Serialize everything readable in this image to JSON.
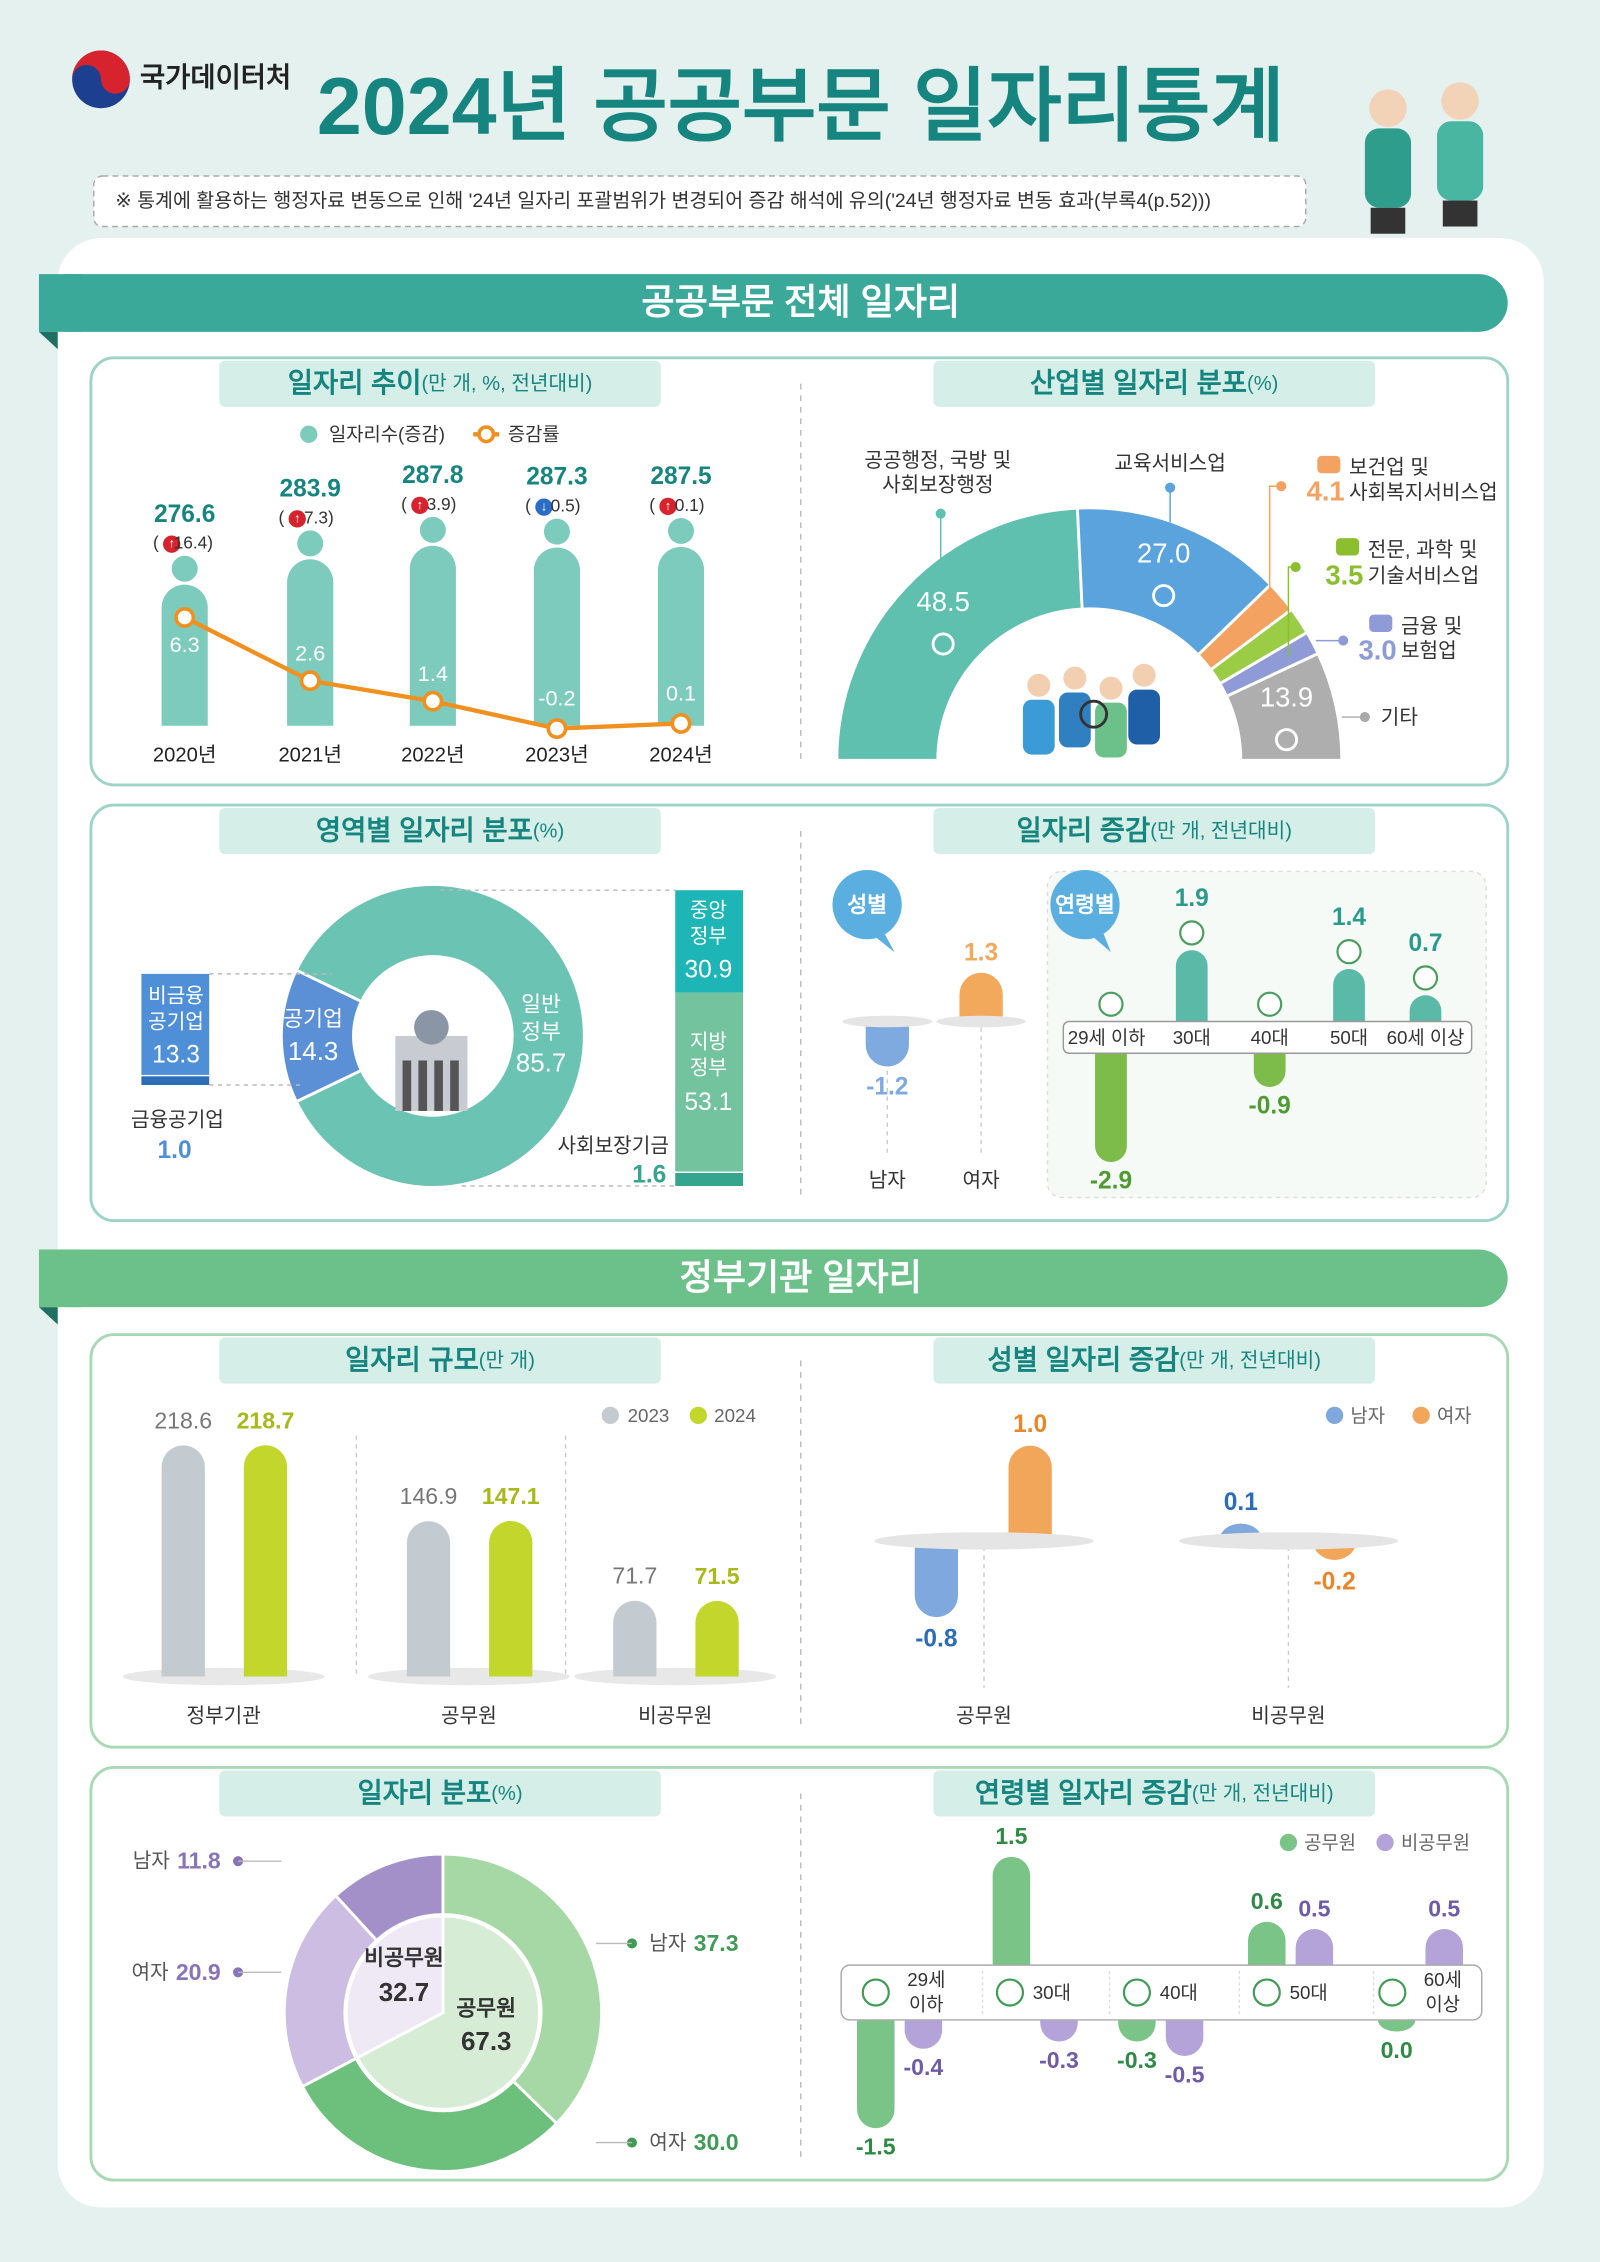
{
  "header": {
    "org": "국가데이터처",
    "title": "2024년 공공부문 일자리통계",
    "note": "※ 통계에 활용하는 행정자료 변동으로 인해 '24년 일자리 포괄범위가 변경되어 증감 해석에 유의('24년 행정자료 변동 효과(부록4(p.52)))"
  },
  "sections": [
    {
      "title": "공공부문 전체 일자리"
    },
    {
      "title": "정부기관 일자리"
    }
  ],
  "colors": {
    "teal": "#3aa99a",
    "green": "#6cc08a",
    "title_text": "#16857f"
  },
  "chart_data": [
    {
      "type": "bar+line",
      "title": "일자리 추이",
      "title_unit": "(만 개, %, 전년대비)",
      "legend": [
        "일자리수(증감)",
        "증감률"
      ],
      "categories": [
        "2020년",
        "2021년",
        "2022년",
        "2023년",
        "2024년"
      ],
      "jobs": [
        276.6,
        283.9,
        287.8,
        287.3,
        287.5
      ],
      "jobs_change": [
        16.4,
        7.3,
        3.9,
        -0.5,
        0.1
      ],
      "rate": [
        6.3,
        2.6,
        1.4,
        -0.2,
        0.1
      ],
      "colors": {
        "bar": "#7dcbbd",
        "line": "#f0901e"
      }
    },
    {
      "type": "pie",
      "shape": "semi-donut",
      "title": "산업별 일자리 분포",
      "title_unit": "(%)",
      "slices": [
        {
          "label": "공공행정, 국방 및",
          "label2": "사회보장행정",
          "value": 48.5,
          "color": "#5fc0b0",
          "icon": "people-gear-icon"
        },
        {
          "label": "교육서비스업",
          "label2": "",
          "value": 27.0,
          "color": "#5aa3dc",
          "icon": "book-icon"
        },
        {
          "label": "보건업 및",
          "label2": "사회복지서비스업",
          "value": 4.1,
          "color": "#f4a261",
          "icon": "heart-hand-icon"
        },
        {
          "label": "전문, 과학 및",
          "label2": "기술서비스업",
          "value": 3.5,
          "color": "#9bcc45",
          "icon": "tools-icon"
        },
        {
          "label": "금융 및",
          "label2": "보험업",
          "value": 3.0,
          "color": "#8f9bd6",
          "icon": "money-icon"
        },
        {
          "label": "기타",
          "label2": "",
          "value": 13.9,
          "color": "#aeaeae",
          "icon": "lightbulb-icon"
        }
      ]
    },
    {
      "type": "pie",
      "shape": "donut",
      "title": "영역별 일자리 분포",
      "title_unit": "(%)",
      "slices": [
        {
          "label": "공기업",
          "value": 14.3,
          "color": "#5b8fd6"
        },
        {
          "label": "일반정부",
          "label_l1": "일반",
          "label_l2": "정부",
          "value": 85.7,
          "color": "#6bc3b4"
        }
      ],
      "public_enterprise": [
        {
          "label_l1": "비금융",
          "label_l2": "공기업",
          "label": "금융공기업",
          "value": 13.3
        },
        {
          "label": "금융공기업",
          "value": 1.0
        }
      ],
      "general_government": [
        {
          "label_l1": "중앙",
          "label_l2": "정부",
          "value": 30.9,
          "color": "#1db5b5"
        },
        {
          "label_l1": "지방",
          "label_l2": "정부",
          "value": 53.1,
          "color": "#72c39e"
        },
        {
          "label": "사회보장기금",
          "value": 1.6,
          "color": "#35a58e"
        }
      ]
    },
    {
      "type": "bar",
      "title": "일자리 증감",
      "title_unit": "(만 개, 전년대비)",
      "gender": {
        "badge": "성별",
        "categories": [
          "남자",
          "여자"
        ],
        "values": [
          -1.2,
          1.3
        ],
        "colors": [
          "#7eaadf",
          "#f3a95c"
        ]
      },
      "age": {
        "badge": "연령별",
        "categories": [
          "29세 이하",
          "30대",
          "40대",
          "50대",
          "60세 이상"
        ],
        "values": [
          -2.9,
          1.9,
          -0.9,
          1.4,
          0.7
        ],
        "colors": {
          "up": "#5ab9a7",
          "down": "#7dbb4a"
        }
      }
    },
    {
      "type": "bar",
      "title": "일자리 규모",
      "title_unit": "(만 개)",
      "categories": [
        "정부기관",
        "공무원",
        "비공무원"
      ],
      "series": [
        {
          "name": "2023",
          "values": [
            218.6,
            146.9,
            71.7
          ],
          "color": "#c3cbd0"
        },
        {
          "name": "2024",
          "values": [
            218.7,
            147.1,
            71.5
          ],
          "color": "#c2d62b"
        }
      ]
    },
    {
      "type": "bar",
      "title": "성별 일자리 증감",
      "title_unit": "(만 개, 전년대비)",
      "categories": [
        "공무원",
        "비공무원"
      ],
      "series": [
        {
          "name": "남자",
          "values": [
            -0.8,
            0.1
          ],
          "color": "#7ea8de"
        },
        {
          "name": "여자",
          "values": [
            1.0,
            -0.2
          ],
          "color": "#f2a65a"
        }
      ]
    },
    {
      "type": "pie",
      "shape": "nested-donut",
      "title": "일자리 분포",
      "title_unit": "(%)",
      "inner": [
        {
          "label": "공무원",
          "value": 67.3,
          "color": "#d6ecd4"
        },
        {
          "label": "비공무원",
          "value": 32.7,
          "color": "#eee9f5"
        }
      ],
      "outer": [
        {
          "label": "남자",
          "value": 37.3,
          "color": "#a6d8a6"
        },
        {
          "label": "여자",
          "value": 30.0,
          "color": "#6dbf7c"
        },
        {
          "label": "여자",
          "value": 20.9,
          "color": "#cdbde3"
        },
        {
          "label": "남자",
          "value": 11.8,
          "color": "#a390c8"
        }
      ]
    },
    {
      "type": "bar",
      "title": "연령별 일자리 증감",
      "title_unit": "(만 개, 전년대비)",
      "categories": [
        [
          "29세",
          "이하"
        ],
        [
          "30대"
        ],
        [
          "40대"
        ],
        [
          "50대"
        ],
        [
          "60세",
          "이상"
        ]
      ],
      "series": [
        {
          "name": "공무원",
          "values": [
            -1.5,
            1.5,
            -0.3,
            0.6,
            0.0
          ],
          "color": "#7bc488"
        },
        {
          "name": "비공무원",
          "values": [
            -0.4,
            -0.3,
            -0.5,
            0.5,
            0.5
          ],
          "color": "#b3a3d8"
        }
      ]
    }
  ]
}
